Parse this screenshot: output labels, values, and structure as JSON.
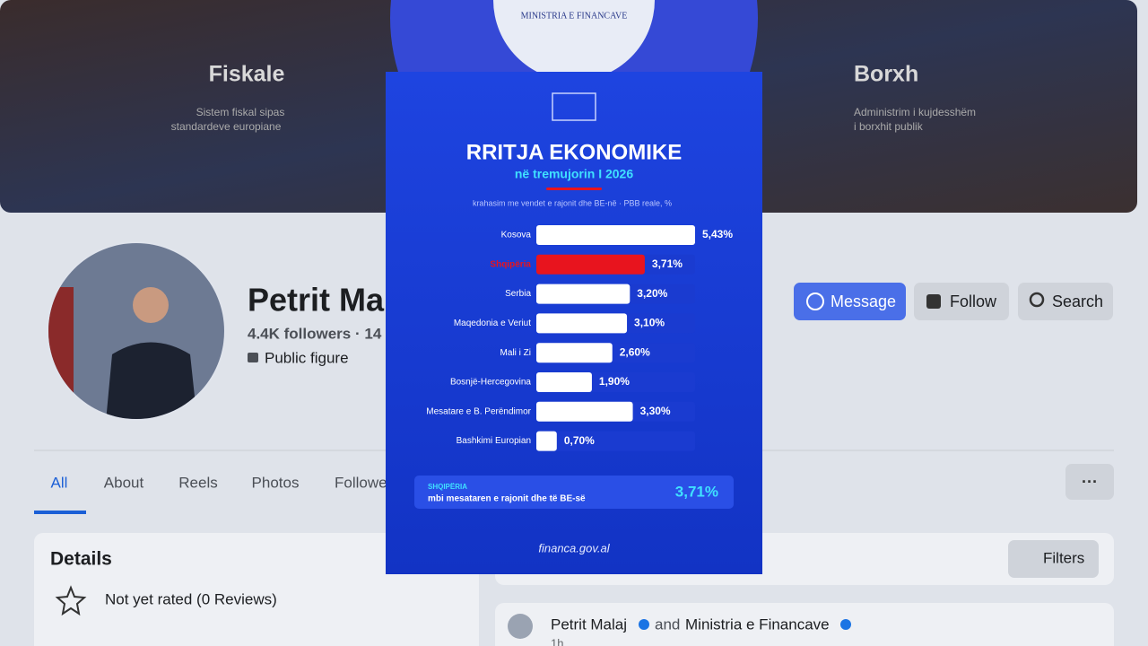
{
  "cover": {
    "left_title": "Fiskale",
    "left_text": [
      "Sistem fiskal sipas",
      "standardeve europiane"
    ],
    "right_title": "Borxh",
    "right_text": [
      "Administrim i kujdesshëm",
      "i borxhit publik"
    ],
    "logo_text": "MINISTRIA E FINANCAVE"
  },
  "profile": {
    "name": "Petrit Mal",
    "stats": "4.4K followers · 14",
    "category": "Public figure",
    "buttons": [
      "Message",
      "Follow",
      "Search"
    ]
  },
  "tabs": [
    "All",
    "About",
    "Reels",
    "Photos",
    "Followe"
  ],
  "details": {
    "title": "Details",
    "rating": "Not yet rated (0 Reviews)"
  },
  "feed": {
    "filters": "Filters",
    "author": "Petrit Malaj",
    "joiner": "and",
    "coauthor": "Ministria e Financave",
    "time": "1h"
  },
  "infographic": {
    "callout_label": "SHQIPËRIA",
    "callout_text": "mbi mesataren e rajonit dhe të BE-së",
    "callout_value": "3,71%",
    "footer": "financa.gov.al"
  },
  "chart_data": {
    "type": "bar",
    "orientation": "horizontal",
    "title": "RRITJA EKONOMIKE",
    "subtitle": "në tremujorin I 2026",
    "note": "krahasim me vendet e rajonit dhe BE-në · PBB reale, %",
    "categories": [
      "Kosova",
      "Shqipëria",
      "Serbia",
      "Maqedonia e Veriut",
      "Mali i Zi",
      "Bosnjë-Hercegovina",
      "Mesatare e B. Perëndimor",
      "Bashkimi Europian"
    ],
    "values": [
      5.43,
      3.71,
      3.2,
      3.1,
      2.6,
      1.9,
      3.3,
      0.7
    ],
    "value_labels": [
      "5,43%",
      "3,71%",
      "3,20%",
      "3,10%",
      "2,60%",
      "1,90%",
      "3,30%",
      "0,70%"
    ],
    "colors": [
      "#ffffff",
      "#e8141e",
      "#ffffff",
      "#ffffff",
      "#ffffff",
      "#ffffff",
      "#ffffff",
      "#ffffff"
    ]
  }
}
